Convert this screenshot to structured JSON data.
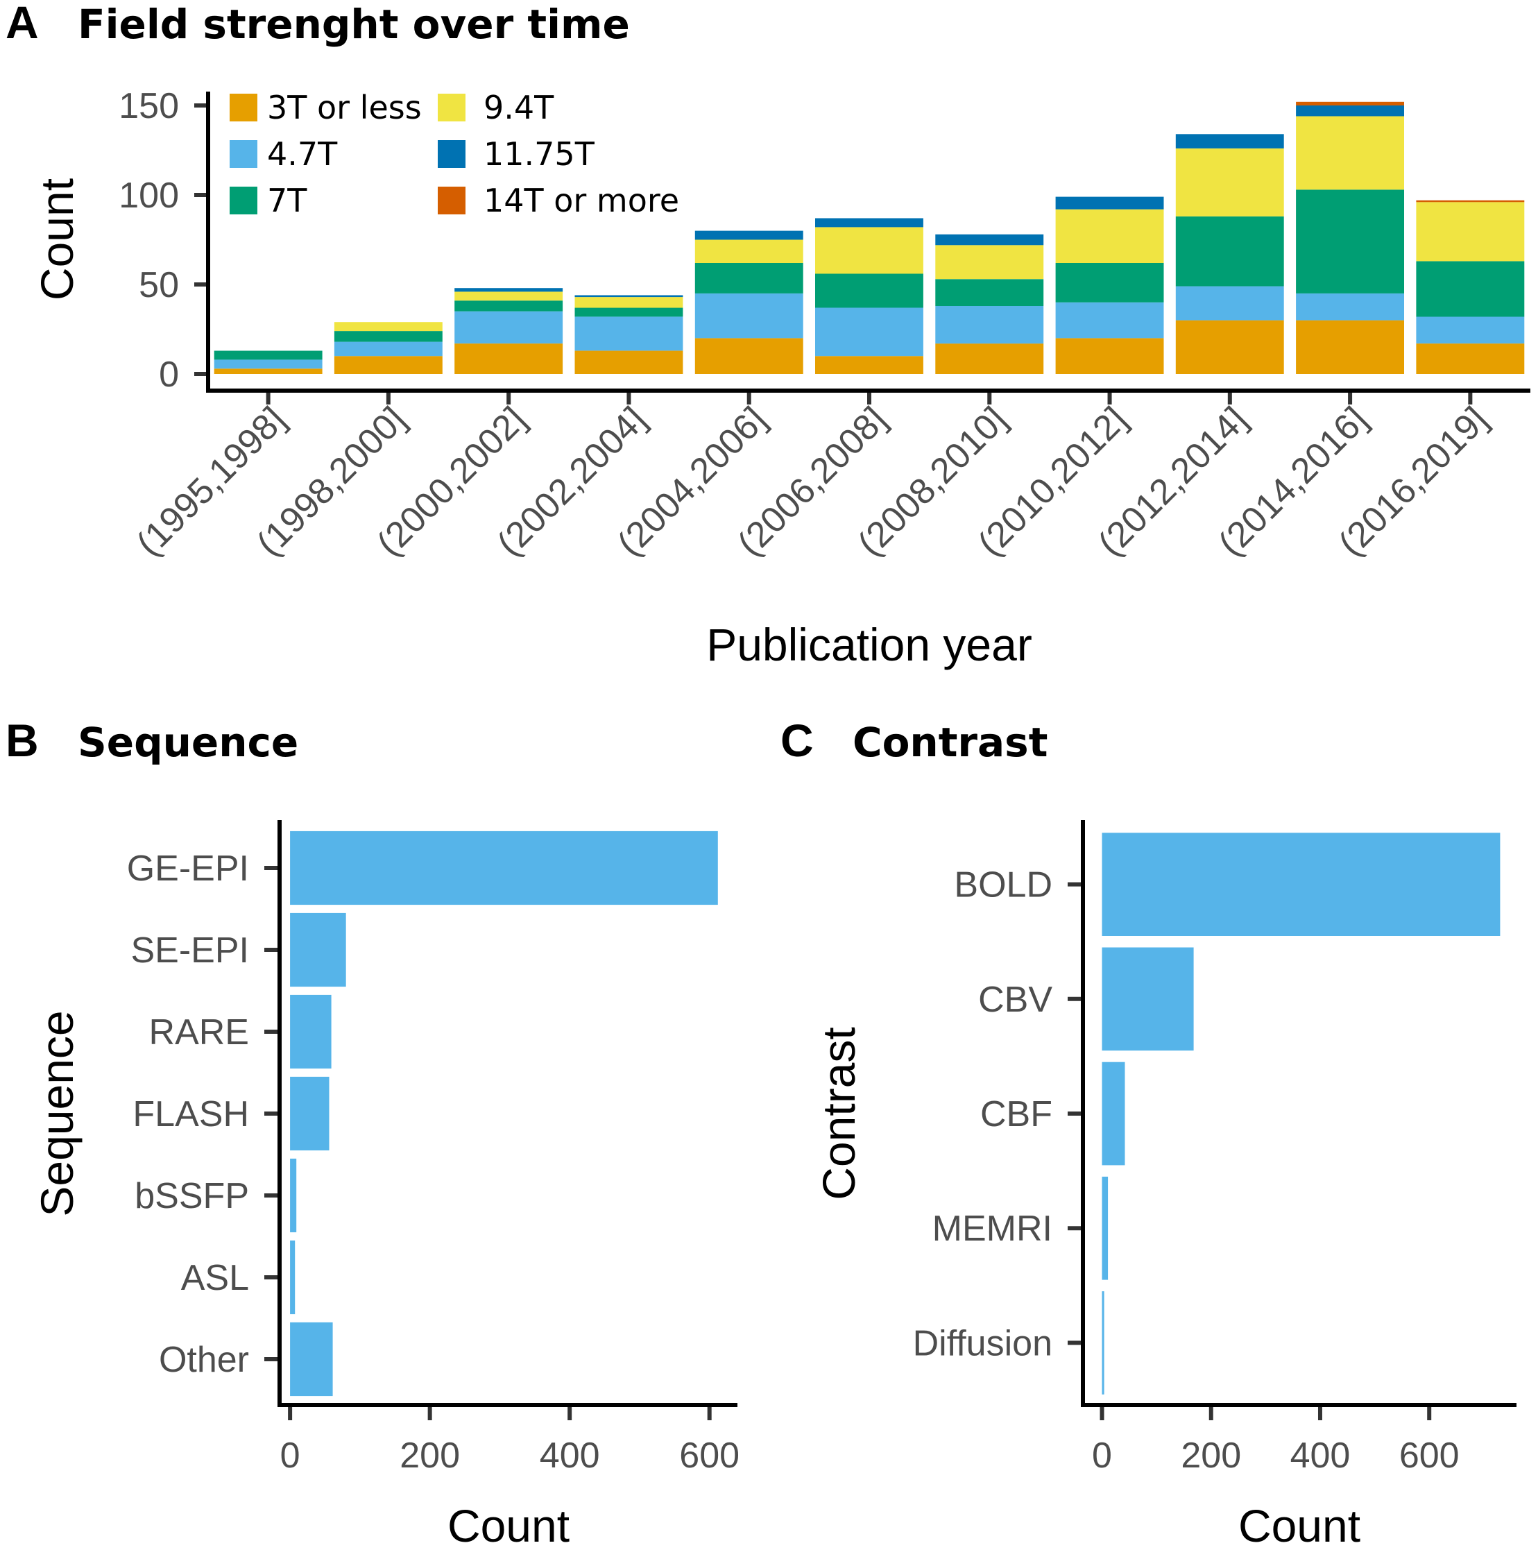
{
  "chart_data": [
    {
      "panel": "A",
      "type": "bar",
      "stacked": true,
      "title": "Field strenght over time",
      "xlabel": "Publication year",
      "ylabel": "Count",
      "ylim": [
        0,
        155
      ],
      "yticks": [
        "0",
        "50",
        "100",
        "150"
      ],
      "ytick_values": [
        0,
        50,
        100,
        150
      ],
      "categories": [
        "(1995,1998]",
        "(1998,2000]",
        "(2000,2002]",
        "(2002,2004]",
        "(2004,2006]",
        "(2006,2008]",
        "(2008,2010]",
        "(2010,2012]",
        "(2012,2014]",
        "(2014,2016]",
        "(2016,2019]"
      ],
      "series": [
        {
          "name": "3T or less",
          "color": "#E69F00",
          "values": [
            3,
            10,
            17,
            13,
            20,
            10,
            17,
            20,
            30,
            30,
            17
          ]
        },
        {
          "name": "4.7T",
          "color": "#56B4E9",
          "values": [
            5,
            8,
            18,
            19,
            25,
            27,
            21,
            20,
            19,
            15,
            15
          ]
        },
        {
          "name": "7T",
          "color": "#009E73",
          "values": [
            5,
            6,
            6,
            5,
            17,
            19,
            15,
            22,
            39,
            58,
            31
          ]
        },
        {
          "name": "9.4T",
          "color": "#F0E442",
          "values": [
            0,
            5,
            5,
            6,
            13,
            26,
            19,
            30,
            38,
            41,
            33
          ]
        },
        {
          "name": "11.75T",
          "color": "#0072B2",
          "values": [
            0,
            0,
            2,
            1,
            5,
            5,
            6,
            7,
            8,
            6,
            0
          ]
        },
        {
          "name": "14T or more",
          "color": "#D55E00",
          "values": [
            0,
            0,
            0,
            0,
            0,
            0,
            0,
            0,
            0,
            2,
            1
          ]
        }
      ],
      "legend_position": "top-left"
    },
    {
      "panel": "B",
      "type": "bar",
      "orientation": "horizontal",
      "title": "Sequence",
      "xlabel": "Count",
      "ylabel": "Sequence",
      "xlim": [
        -15,
        640
      ],
      "xticks": [
        "0",
        "200",
        "400",
        "600"
      ],
      "xtick_values": [
        0,
        200,
        400,
        600
      ],
      "color": "#56B4E9",
      "categories": [
        "GE-EPI",
        "SE-EPI",
        "RARE",
        "FLASH",
        "bSSFP",
        "ASL",
        "Other"
      ],
      "values": [
        612,
        80,
        59,
        56,
        9,
        7,
        61
      ]
    },
    {
      "panel": "C",
      "type": "bar",
      "orientation": "horizontal",
      "title": "Contrast",
      "xlabel": "Count",
      "ylabel": "Contrast",
      "xlim": [
        -35,
        760
      ],
      "xticks": [
        "0",
        "200",
        "400",
        "600"
      ],
      "xtick_values": [
        0,
        200,
        400,
        600
      ],
      "color": "#56B4E9",
      "categories": [
        "BOLD",
        "CBV",
        "CBF",
        "MEMRI",
        "Diffusion"
      ],
      "values": [
        730,
        168,
        42,
        11,
        4
      ]
    }
  ]
}
